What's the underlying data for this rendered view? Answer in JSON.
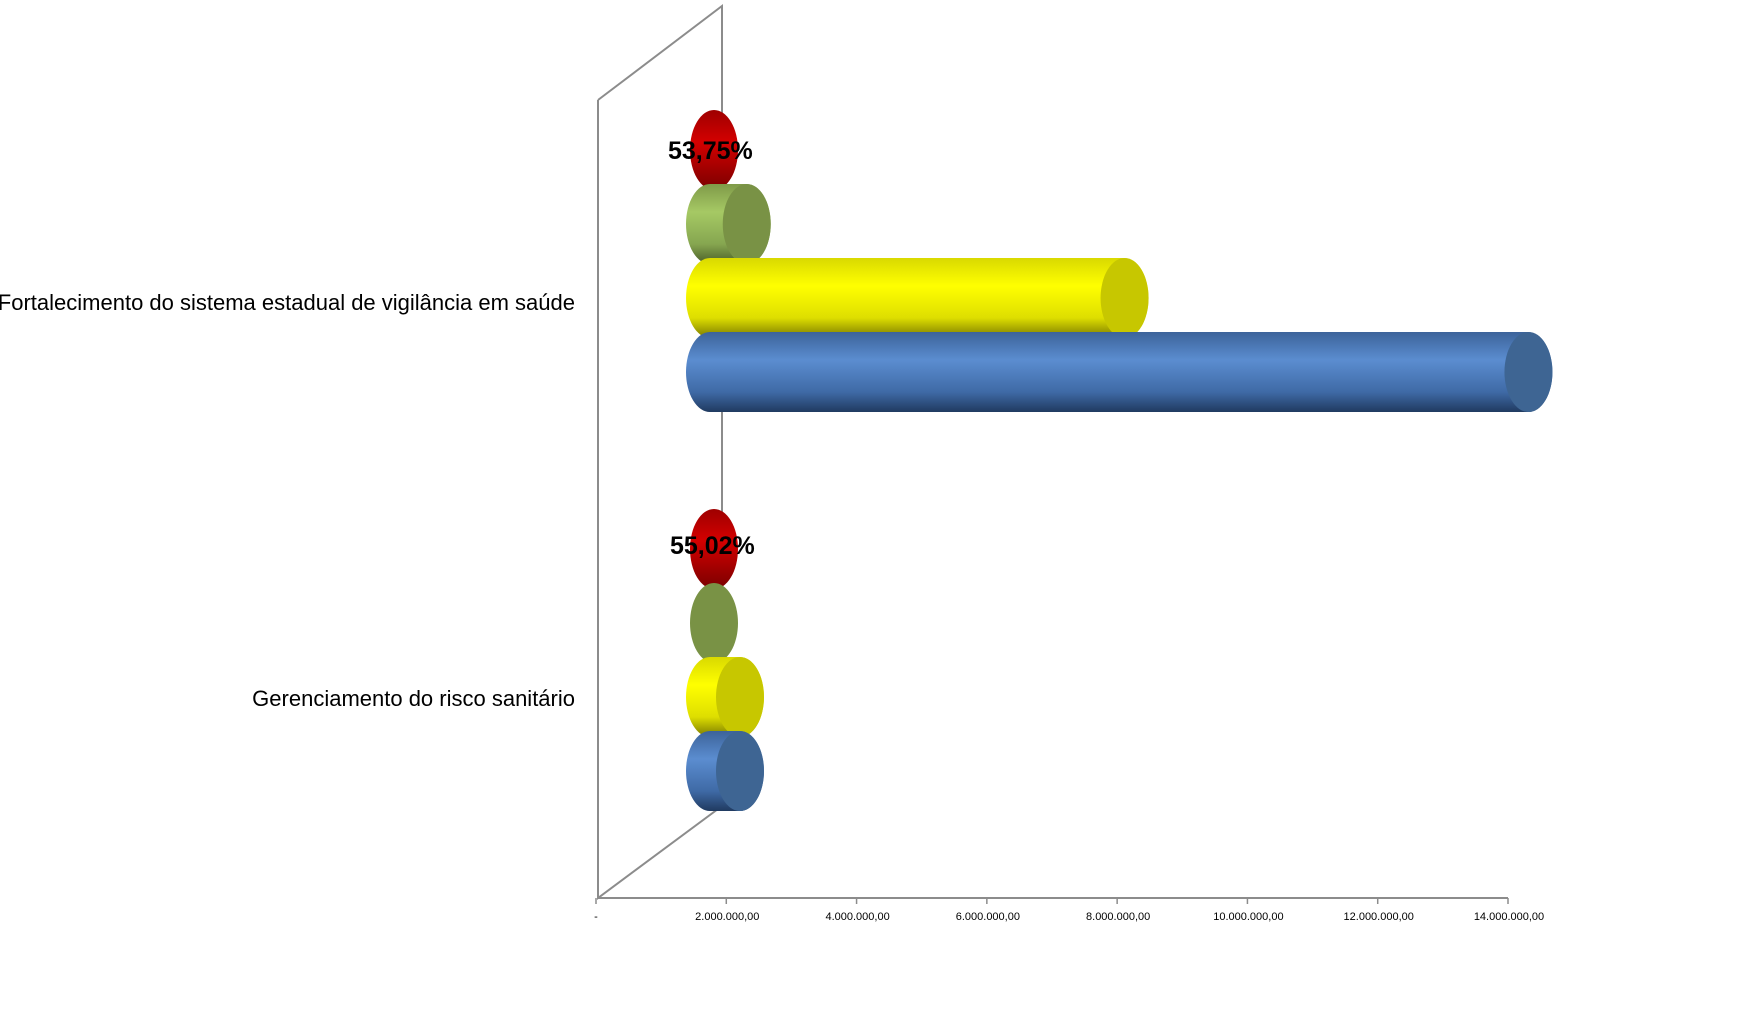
{
  "chart_data": {
    "type": "bar",
    "orientation": "horizontal",
    "style": "3d-cylinder",
    "categories": [
      "Fortalecimento do sistema estadual de vigilância em saúde",
      "Gerenciamento do risco sanitário"
    ],
    "series": [
      {
        "color": "#4f81bd",
        "values": [
          13700000,
          1450000
        ]
      },
      {
        "color": "#ffff00",
        "values": [
          7500000,
          600000
        ]
      },
      {
        "color": "#9bbb59",
        "values": [
          1700000,
          0
        ]
      },
      {
        "color": "#c00000",
        "values": [
          0,
          0
        ]
      }
    ],
    "data_labels": [
      "53,75%",
      "55,02%"
    ],
    "x_ticks": [
      "-",
      "2.000.000,00",
      "4.000.000,00",
      "6.000.000,00",
      "8.000.000,00",
      "10.000.000,00",
      "12.000.000,00",
      "14.000.000,00"
    ],
    "xlim": [
      0,
      14000000
    ],
    "legend": "none",
    "grid": false
  }
}
